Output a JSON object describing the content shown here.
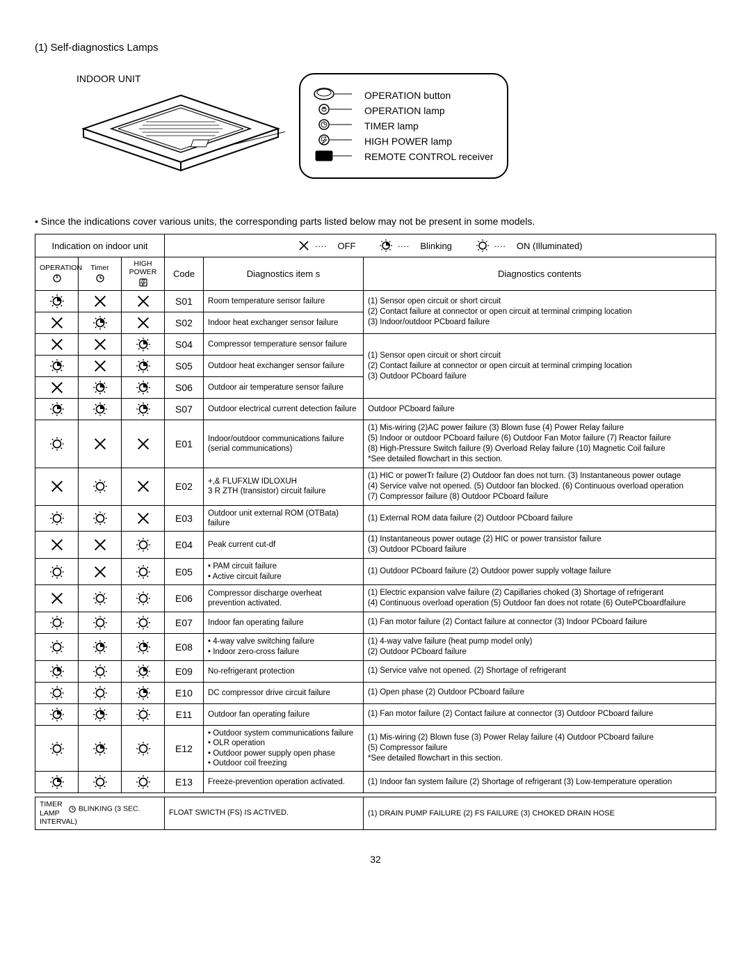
{
  "section_title": "(1) Self-diagnostics Lamps",
  "diagram_label": "INDOOR UNIT",
  "panel_labels": {
    "op_btn": "OPERATION button",
    "op_lamp": "OPERATION lamp",
    "timer_lamp": "TIMER lamp",
    "hp_lamp": "HIGH POWER lamp",
    "remote": "REMOTE CONTROL receiver"
  },
  "note": "• Since the indications cover various units, the corresponding parts listed below may not be  present in some models.",
  "legend": {
    "indication": "Indication on indoor unit",
    "off": "OFF",
    "blinking": "Blinking",
    "on": "ON (Illuminated)",
    "dots": "····"
  },
  "table_headers": {
    "operation": "OPERATION",
    "timer": "Timer",
    "high_power": "HIGH POWER",
    "code": "Code",
    "items": "Diagnostics item s",
    "contents": "Diagnostics contents"
  },
  "footer": {
    "timer_lamp": "TIMER LAMP",
    "blinking_3s": "BLINKING (3 SEC. INTERVAL)",
    "float": "FLOAT SWICTH (FS) IS ACTIVED.",
    "float_content": "(1) DRAIN PUMP FAILURE   (2) FS FAILURE   (3) CHOKED DRAIN HOSE"
  },
  "page_number": "32",
  "rows": [
    {
      "lamps": [
        "blink",
        "off",
        "off"
      ],
      "code": "S01",
      "item": "Room temperature sensor failure",
      "content": "(1) Sensor open circuit or short circuit\n(2) Contact failure at connector or open circuit at terminal crimping location\n(3) Indoor/outdoor PCboard failure",
      "group": "g1",
      "group_first": true,
      "group_span": 2
    },
    {
      "lamps": [
        "off",
        "blink",
        "off"
      ],
      "code": "S02",
      "item": "Indoor heat exchanger sensor failure",
      "group": "g1"
    },
    {
      "lamps": [
        "off",
        "off",
        "blink"
      ],
      "code": "S04",
      "item": "Compressor temperature sensor failure",
      "content": "(1) Sensor open circuit or short circuit\n(2) Contact failure at connector or open circuit at terminal crimping location\n(3) Outdoor PCboard failure",
      "group": "g2",
      "group_first": true,
      "group_span": 3
    },
    {
      "lamps": [
        "blink",
        "off",
        "blink"
      ],
      "code": "S05",
      "item": "Outdoor heat exchanger sensor failure",
      "group": "g2"
    },
    {
      "lamps": [
        "off",
        "blink",
        "blink"
      ],
      "code": "S06",
      "item": "Outdoor air temperature sensor failure",
      "group": "g2"
    },
    {
      "lamps": [
        "blink",
        "blink",
        "blink"
      ],
      "code": "S07",
      "item": "Outdoor electrical current detection failure",
      "content": "Outdoor PCboard failure"
    },
    {
      "lamps": [
        "on",
        "off",
        "off"
      ],
      "code": "E01",
      "item": "Indoor/outdoor communications failure (serial communications)",
      "content": "(1) Mis-wiring   (2)AC power failure   (3) Blown fuse   (4) Power Relay failure\n(5) Indoor or outdoor PCboard failure   (6) Outdoor Fan Motor failure   (7) Reactor failure\n(8) High-Pressure Switch failure   (9) Overload Relay failure   (10) Magnetic Coil failure\n*See detailed flowchart in this section."
    },
    {
      "lamps": [
        "off",
        "on",
        "off"
      ],
      "code": "E02",
      "item": "+,& FLUFXLW IDLOXUH\n3 R ZTH (transistor) circuit failure",
      "content": "(1) HIC or powerTr failure   (2) Outdoor fan does not turn.   (3) Instantaneous power outage\n(4) Service valve not opened.   (5) Outdoor fan blocked.   (6) Continuous overload operation\n(7) Compressor failure   (8) Outdoor PCboard failure"
    },
    {
      "lamps": [
        "on",
        "on",
        "off"
      ],
      "code": "E03",
      "item": "Outdoor unit external ROM (OTBata) failure",
      "content": "(1) External ROM data failure   (2) Outdoor PCboard failure"
    },
    {
      "lamps": [
        "off",
        "off",
        "on"
      ],
      "code": "E04",
      "item": "Peak current cut-df",
      "content": "(1) Instantaneous power outage     (2) HIC or power transistor failure\n(3) Outdoor PCboard failure"
    },
    {
      "lamps": [
        "on",
        "off",
        "on"
      ],
      "code": "E05",
      "item": "• PAM circuit failure\n• Active circuit failure",
      "content": "(1) Outdoor PCboard failure   (2) Outdoor power supply voltage failure"
    },
    {
      "lamps": [
        "off",
        "on",
        "on"
      ],
      "code": "E06",
      "item": "Compressor discharge overheat prevention activated.",
      "content": "(1) Electric expansion valve failure  (2) Capillaries choked  (3) Shortage of refrigerant\n(4) Continuous overload operation  (5) Outdoor fan does not rotate  (6) OutePCboardfailure"
    },
    {
      "lamps": [
        "on",
        "on",
        "on"
      ],
      "code": "E07",
      "item": "Indoor fan operating failure",
      "content": "(1) Fan motor failure   (2) Contact failure at connector    (3) Indoor PCboard failure"
    },
    {
      "lamps": [
        "on",
        "blink",
        "blink"
      ],
      "code": "E08",
      "item": "• 4-way valve switching failure\n• Indoor zero-cross failure",
      "content": "(1) 4-way valve failure (heat pump model only)\n(2) Outdoor PCboard failure"
    },
    {
      "lamps": [
        "blink",
        "on",
        "blink"
      ],
      "code": "E09",
      "item": "No-refrigerant protection",
      "content": "(1) Service valve not opened.    (2) Shortage of refrigerant"
    },
    {
      "lamps": [
        "on",
        "on",
        "blink"
      ],
      "code": "E10",
      "item": "DC compressor drive circuit failure",
      "content": "(1) Open phase   (2) Outdoor PCboard failure"
    },
    {
      "lamps": [
        "blink",
        "blink",
        "on"
      ],
      "code": "E11",
      "item": "Outdoor fan operating failure",
      "content": "(1) Fan motor failure   (2) Contact failure at connector    (3) Outdoor PCboard failure"
    },
    {
      "lamps": [
        "on",
        "blink",
        "on"
      ],
      "code": "E12",
      "item": "• Outdoor system communications failure\n• OLR operation\n• Outdoor power supply open phase\n• Outdoor coil freezing",
      "content": "(1) Mis-wiring    (2) Blown fuse    (3) Power Relay failure   (4) Outdoor PCboard failure\n(5) Compressor failure\n*See detailed flowchart in this section."
    },
    {
      "lamps": [
        "blink",
        "on",
        "on"
      ],
      "code": "E13",
      "item": "Freeze-prevention operation activated.",
      "content": "(1) Indoor fan system failure   (2) Shortage of refrigerant   (3) Low-temperature operation"
    }
  ]
}
